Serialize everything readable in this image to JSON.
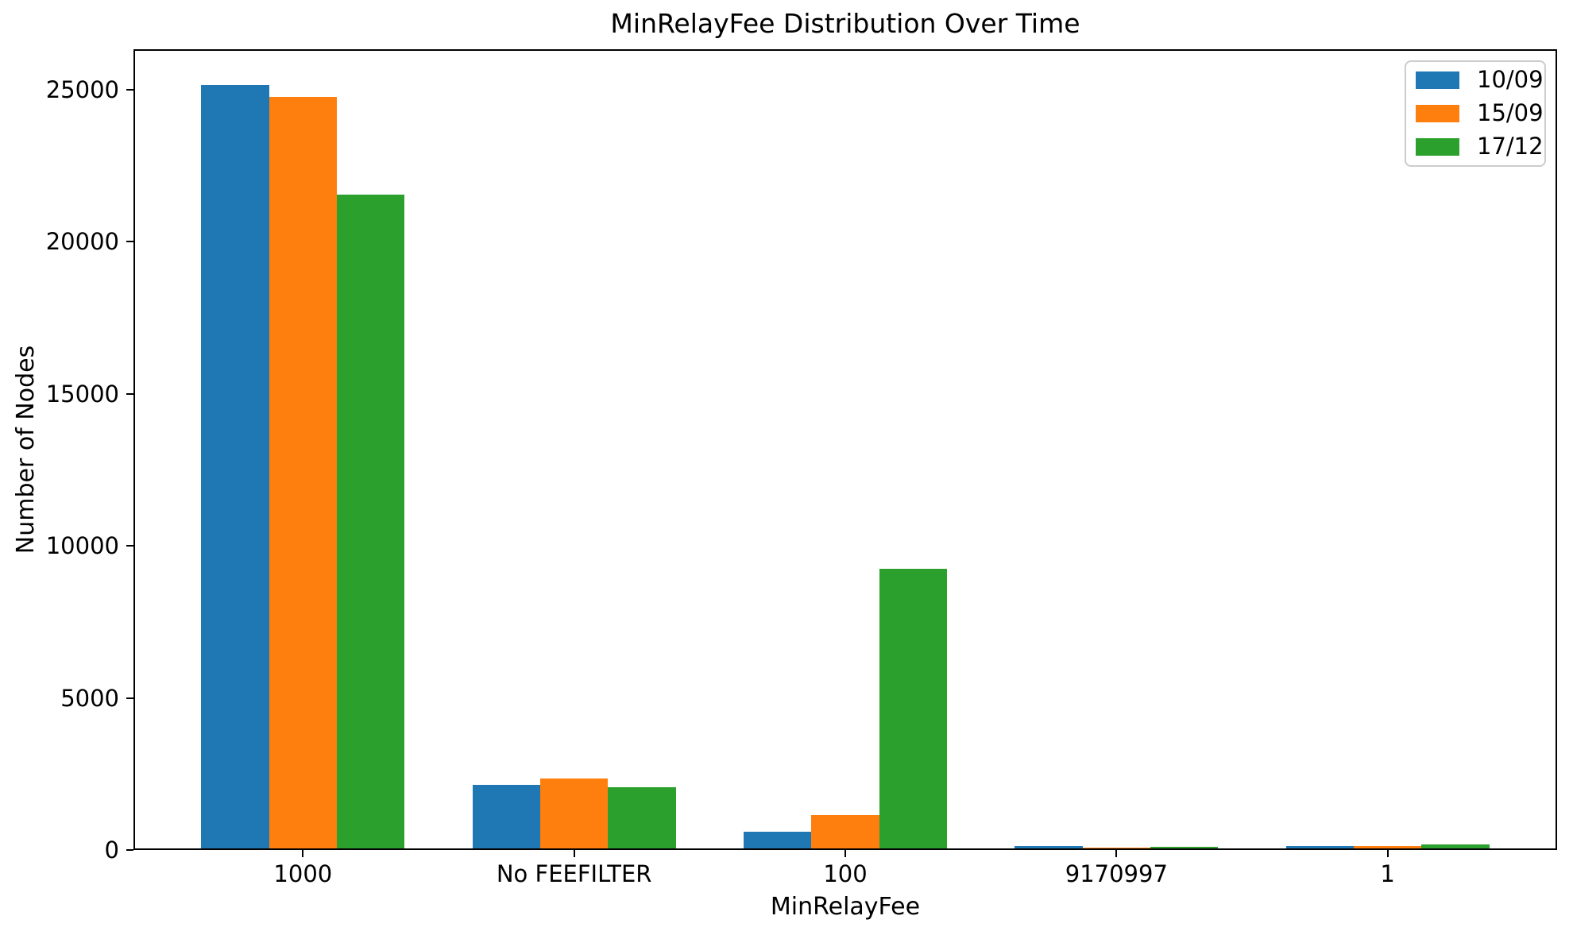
{
  "chart_data": {
    "type": "bar",
    "title": "MinRelayFee Distribution Over Time",
    "xlabel": "MinRelayFee",
    "ylabel": "Number of Nodes",
    "categories": [
      "1000",
      "No FEEFILTER",
      "100",
      "9170997",
      "1"
    ],
    "series": [
      {
        "name": "10/09",
        "color": "#1f77b4",
        "values": [
          25100,
          2100,
          550,
          70,
          80
        ]
      },
      {
        "name": "15/09",
        "color": "#ff7f0e",
        "values": [
          24700,
          2300,
          1100,
          35,
          90
        ]
      },
      {
        "name": "17/12",
        "color": "#2ca02c",
        "values": [
          21500,
          2000,
          9200,
          40,
          140
        ]
      }
    ],
    "yticks": [
      0,
      5000,
      10000,
      15000,
      20000,
      25000
    ],
    "ylim": [
      0,
      26330
    ],
    "xlim": [
      -0.625,
      4.625
    ],
    "bar_width": 0.25,
    "series_offsets": [
      -0.25,
      0,
      0.25
    ],
    "legend_position": "upper right",
    "grid": false,
    "axis_color": "#000000",
    "background_color": "#ffffff"
  }
}
